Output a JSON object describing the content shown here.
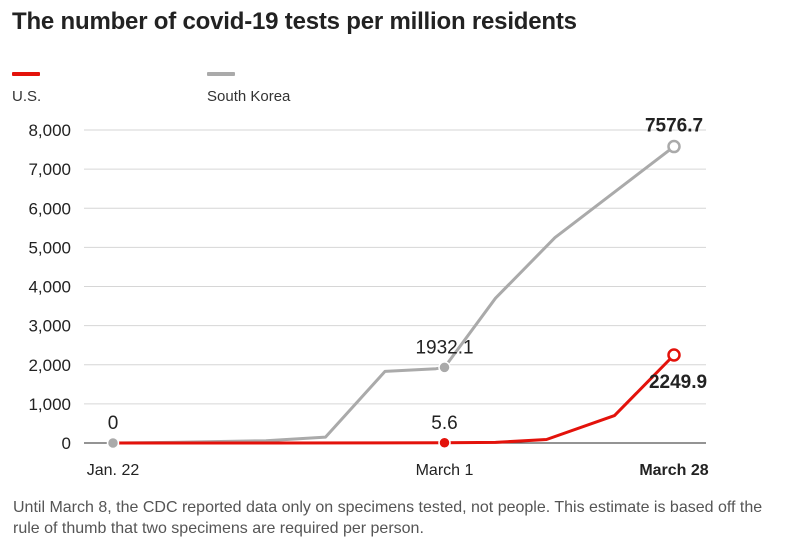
{
  "chart_data": {
    "type": "line",
    "title": "The number of covid-19 tests per million residents",
    "xlabel": "",
    "ylabel": "",
    "ylim": [
      0,
      8000
    ],
    "yticks": [
      0,
      1000,
      2000,
      3000,
      4000,
      5000,
      6000,
      7000,
      8000
    ],
    "ytick_labels": [
      "0",
      "1,000",
      "2,000",
      "3,000",
      "4,000",
      "5,000",
      "6,000",
      "7,000",
      "8,000"
    ],
    "x_range": [
      0,
      66
    ],
    "xticks": [
      {
        "x": 0,
        "label": "Jan. 22"
      },
      {
        "x": 39,
        "label": "March 1"
      },
      {
        "x": 66,
        "label": "March 28"
      }
    ],
    "grid": true,
    "legend": "top-left",
    "series": [
      {
        "name": "South Korea",
        "color": "#aaaaaa",
        "points": [
          [
            0,
            0
          ],
          [
            7,
            15
          ],
          [
            18,
            60
          ],
          [
            25,
            150
          ],
          [
            32,
            1830
          ],
          [
            38,
            1900
          ],
          [
            39,
            1932.1
          ],
          [
            45,
            3700
          ],
          [
            52,
            5250
          ],
          [
            66,
            7576.7
          ]
        ],
        "markers": [
          {
            "x": 0,
            "y": 0,
            "style": "filled"
          },
          {
            "x": 39,
            "y": 1932.1,
            "style": "filled"
          },
          {
            "x": 66,
            "y": 7576.7,
            "style": "open"
          }
        ],
        "labels": [
          {
            "x": 39,
            "y": 1932.1,
            "text": "1932.1",
            "bold": false
          },
          {
            "x": 66,
            "y": 7576.7,
            "text": "7576.7",
            "bold": true
          }
        ]
      },
      {
        "name": "U.S.",
        "color": "#e3120b",
        "points": [
          [
            0,
            0
          ],
          [
            18,
            1
          ],
          [
            39,
            5.6
          ],
          [
            45,
            15
          ],
          [
            51,
            90
          ],
          [
            59,
            700
          ],
          [
            66,
            2249.9
          ]
        ],
        "markers": [
          {
            "x": 39,
            "y": 5.6,
            "style": "filled"
          },
          {
            "x": 66,
            "y": 2249.9,
            "style": "open"
          }
        ],
        "labels": [
          {
            "x": 0,
            "y": 0,
            "text": "0",
            "bold": false
          },
          {
            "x": 39,
            "y": 5.6,
            "text": "5.6",
            "bold": false
          },
          {
            "x": 66,
            "y": 2249.9,
            "text": "2249.9",
            "bold": true
          }
        ]
      }
    ]
  },
  "legend": {
    "items": [
      {
        "label": "U.S.",
        "color": "#e3120b"
      },
      {
        "label": "South Korea",
        "color": "#aaaaaa"
      }
    ]
  },
  "note": "Until March 8, the CDC reported data only on specimens tested, not people. This estimate is based off the rule of thumb that two specimens are required per person."
}
